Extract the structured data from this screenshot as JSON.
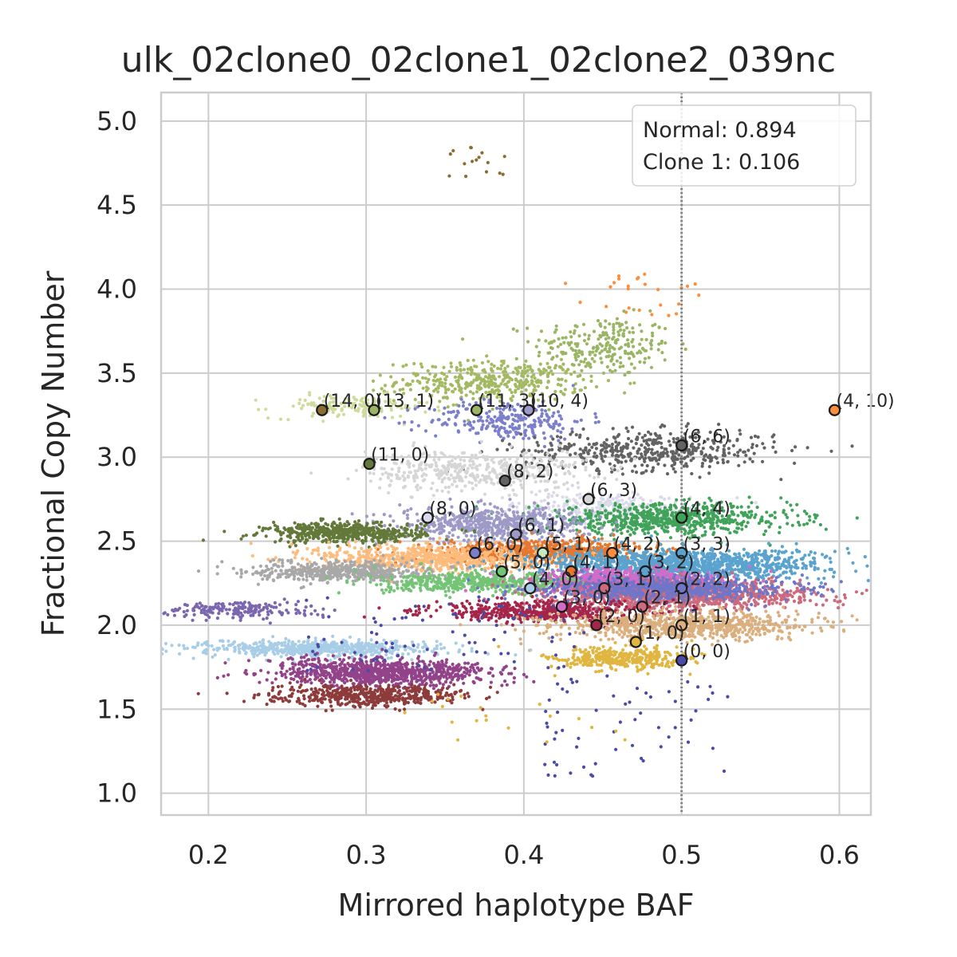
{
  "chart_data": {
    "type": "scatter",
    "title": "ulk_02clone0_02clone1_02clone2_039nc",
    "xlabel": "Mirrored haplotype BAF",
    "ylabel": "Fractional Copy Number",
    "xlim": [
      0.17,
      0.62
    ],
    "ylim": [
      0.87,
      5.17
    ],
    "xticks": [
      0.2,
      0.3,
      0.4,
      0.5,
      0.6
    ],
    "xtick_labels": [
      "0.2",
      "0.3",
      "0.4",
      "0.5",
      "0.6"
    ],
    "yticks": [
      1.0,
      1.5,
      2.0,
      2.5,
      3.0,
      3.5,
      4.0,
      4.5,
      5.0
    ],
    "ytick_labels": [
      "1.0",
      "1.5",
      "2.0",
      "2.5",
      "3.0",
      "3.5",
      "4.0",
      "4.5",
      "5.0"
    ],
    "grid": true,
    "reference_line": {
      "x": 0.5,
      "style": "dotted",
      "color": "#808080"
    },
    "legend": {
      "placement": "top-right",
      "entries": [
        "Normal: 0.894",
        "Clone 1: 0.106"
      ]
    },
    "clusters": [
      {
        "cx": 0.37,
        "cy": 4.76,
        "sx": 0.012,
        "sy": 0.06,
        "n": 16,
        "color": "#8c6d31",
        "sparse": true
      },
      {
        "cx": 0.47,
        "cy": 3.95,
        "sx": 0.03,
        "sy": 0.1,
        "n": 26,
        "color": "#fd8d3c",
        "sparse": true
      },
      {
        "cx": 0.45,
        "cy": 3.66,
        "sx": 0.022,
        "sy": 0.09,
        "n": 240,
        "color": "#9ab563"
      },
      {
        "cx": 0.38,
        "cy": 3.45,
        "sx": 0.03,
        "sy": 0.06,
        "n": 420,
        "color": "#a3ba63"
      },
      {
        "cx": 0.29,
        "cy": 3.3,
        "sx": 0.025,
        "sy": 0.035,
        "n": 140,
        "color": "#cedb9c"
      },
      {
        "cx": 0.39,
        "cy": 3.22,
        "sx": 0.025,
        "sy": 0.06,
        "n": 260,
        "color": "#7b7fcc"
      },
      {
        "cx": 0.48,
        "cy": 3.04,
        "sx": 0.04,
        "sy": 0.06,
        "n": 480,
        "color": "#636363"
      },
      {
        "cx": 0.37,
        "cy": 2.92,
        "sx": 0.035,
        "sy": 0.06,
        "n": 450,
        "color": "#d6d6d6"
      },
      {
        "cx": 0.45,
        "cy": 2.7,
        "sx": 0.035,
        "sy": 0.05,
        "n": 260,
        "color": "#dadaeb"
      },
      {
        "cx": 0.49,
        "cy": 2.63,
        "sx": 0.04,
        "sy": 0.045,
        "n": 700,
        "color": "#41a35a"
      },
      {
        "cx": 0.38,
        "cy": 2.6,
        "sx": 0.03,
        "sy": 0.05,
        "n": 600,
        "color": "#9e9ac8"
      },
      {
        "cx": 0.287,
        "cy": 2.55,
        "sx": 0.025,
        "sy": 0.03,
        "n": 520,
        "color": "#637939"
      },
      {
        "cx": 0.41,
        "cy": 2.44,
        "sx": 0.035,
        "sy": 0.035,
        "n": 650,
        "color": "#e6772e"
      },
      {
        "cx": 0.34,
        "cy": 2.4,
        "sx": 0.035,
        "sy": 0.04,
        "n": 700,
        "color": "#fdbb7c"
      },
      {
        "cx": 0.5,
        "cy": 2.36,
        "sx": 0.045,
        "sy": 0.045,
        "n": 1300,
        "color": "#5ba3cf"
      },
      {
        "cx": 0.285,
        "cy": 2.32,
        "sx": 0.028,
        "sy": 0.03,
        "n": 520,
        "color": "#a8a8a8"
      },
      {
        "cx": 0.46,
        "cy": 2.26,
        "sx": 0.03,
        "sy": 0.035,
        "n": 900,
        "color": "#d36bc7"
      },
      {
        "cx": 0.37,
        "cy": 2.25,
        "sx": 0.03,
        "sy": 0.03,
        "n": 450,
        "color": "#74c476"
      },
      {
        "cx": 0.5,
        "cy": 2.18,
        "sx": 0.04,
        "sy": 0.04,
        "n": 1100,
        "color": "#cc6a7e"
      },
      {
        "cx": 0.49,
        "cy": 2.22,
        "sx": 0.04,
        "sy": 0.035,
        "n": 700,
        "color": "#6f76c9"
      },
      {
        "cx": 0.41,
        "cy": 2.08,
        "sx": 0.035,
        "sy": 0.03,
        "n": 500,
        "color": "#a5264a"
      },
      {
        "cx": 0.5,
        "cy": 2.0,
        "sx": 0.04,
        "sy": 0.04,
        "n": 800,
        "color": "#dbae7e"
      },
      {
        "cx": 0.22,
        "cy": 2.09,
        "sx": 0.025,
        "sy": 0.025,
        "n": 200,
        "color": "#7b66b0"
      },
      {
        "cx": 0.46,
        "cy": 1.8,
        "sx": 0.022,
        "sy": 0.035,
        "n": 380,
        "color": "#e0b540"
      },
      {
        "cx": 0.27,
        "cy": 1.86,
        "sx": 0.04,
        "sy": 0.025,
        "n": 600,
        "color": "#a8cde6"
      },
      {
        "cx": 0.31,
        "cy": 1.72,
        "sx": 0.035,
        "sy": 0.04,
        "n": 950,
        "color": "#93438a"
      },
      {
        "cx": 0.3,
        "cy": 1.58,
        "sx": 0.03,
        "sy": 0.03,
        "n": 500,
        "color": "#8e3b3b"
      },
      {
        "cx": 0.47,
        "cy": 1.4,
        "sx": 0.04,
        "sy": 0.2,
        "n": 60,
        "color": "#4a4aa8",
        "sparse": true
      },
      {
        "cx": 0.39,
        "cy": 1.45,
        "sx": 0.05,
        "sy": 0.1,
        "n": 20,
        "color": "#e0b540",
        "sparse": true
      },
      {
        "cx": 0.35,
        "cy": 1.95,
        "sx": 0.06,
        "sy": 0.15,
        "n": 90,
        "color": "#4a4aa8",
        "sparse": true
      }
    ],
    "centroids": [
      {
        "label": "(14, 0)",
        "x": 0.272,
        "y": 3.28,
        "color": "#8c6d31"
      },
      {
        "label": "(13, 1)",
        "x": 0.305,
        "y": 3.28,
        "color": "#9ab563"
      },
      {
        "label": "(11, 3)",
        "x": 0.37,
        "y": 3.28,
        "color": "#9ab563"
      },
      {
        "label": "(10, 4)",
        "x": 0.403,
        "y": 3.28,
        "color": "#9e9ac8"
      },
      {
        "label": "(4, 10)",
        "x": 0.597,
        "y": 3.28,
        "color": "#fd8d3c"
      },
      {
        "label": "(6, 6)",
        "x": 0.5,
        "y": 3.07,
        "color": "#636363"
      },
      {
        "label": "(11, 0)",
        "x": 0.302,
        "y": 2.96,
        "color": "#637939"
      },
      {
        "label": "(8, 2)",
        "x": 0.388,
        "y": 2.86,
        "color": "#636363"
      },
      {
        "label": "(6, 3)",
        "x": 0.441,
        "y": 2.75,
        "color": "#d6d6d6"
      },
      {
        "label": "(8, 0)",
        "x": 0.339,
        "y": 2.64,
        "color": "#dadaeb"
      },
      {
        "label": "(4, 4)",
        "x": 0.5,
        "y": 2.64,
        "color": "#41a35a"
      },
      {
        "label": "(6, 1)",
        "x": 0.395,
        "y": 2.54,
        "color": "#9e9ac8"
      },
      {
        "label": "(6, 0)",
        "x": 0.369,
        "y": 2.43,
        "color": "#7b7fcc"
      },
      {
        "label": "(5, 1)",
        "x": 0.412,
        "y": 2.43,
        "color": "#c7e9c0"
      },
      {
        "label": "(4, 2)",
        "x": 0.456,
        "y": 2.43,
        "color": "#fd8d3c"
      },
      {
        "label": "(3, 3)",
        "x": 0.5,
        "y": 2.43,
        "color": "#5ba3cf"
      },
      {
        "label": "(5, 0)",
        "x": 0.386,
        "y": 2.32,
        "color": "#74c476"
      },
      {
        "label": "(4, 1)",
        "x": 0.43,
        "y": 2.32,
        "color": "#e6772e"
      },
      {
        "label": "(3, 2)",
        "x": 0.477,
        "y": 2.32,
        "color": "#5ba3cf"
      },
      {
        "label": "(4, 0)",
        "x": 0.404,
        "y": 2.22,
        "color": "#a8cde6"
      },
      {
        "label": "(3, 1)",
        "x": 0.451,
        "y": 2.22,
        "color": "#cc6a7e"
      },
      {
        "label": "(2, 2)",
        "x": 0.5,
        "y": 2.22,
        "color": "#6f76c9"
      },
      {
        "label": "(3, 0)",
        "x": 0.424,
        "y": 2.11,
        "color": "#d36bc7"
      },
      {
        "label": "(2, 1)",
        "x": 0.475,
        "y": 2.11,
        "color": "#cc6a7e"
      },
      {
        "label": "(2, 0)",
        "x": 0.446,
        "y": 2.0,
        "color": "#a5264a"
      },
      {
        "label": "(1, 1)",
        "x": 0.5,
        "y": 2.0,
        "color": "#dbae7e"
      },
      {
        "label": "(1, 0)",
        "x": 0.471,
        "y": 1.9,
        "color": "#e0b540"
      },
      {
        "label": "(0, 0)",
        "x": 0.5,
        "y": 1.79,
        "color": "#4a4aa8"
      }
    ]
  }
}
